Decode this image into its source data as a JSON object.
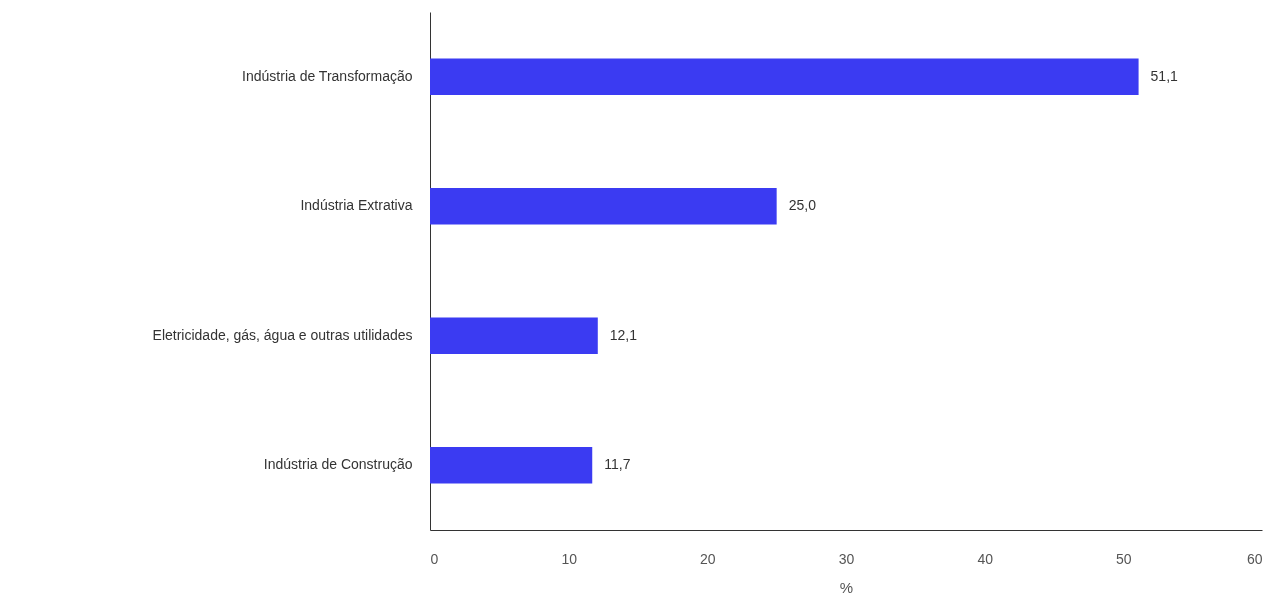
{
  "chart_data": {
    "type": "bar",
    "orientation": "horizontal",
    "xlabel": "%",
    "categories": [
      "Indústria de Transformação",
      "Indústria Extrativa",
      "Eletricidade, gás, água e outras utilidades",
      "Indústria de Construção"
    ],
    "values": [
      51.1,
      25.0,
      12.1,
      11.7
    ],
    "value_labels": [
      "51,1",
      "25,0",
      "12,1",
      "11,7"
    ],
    "color": "#3b3bf2",
    "xlim": [
      0,
      60
    ],
    "xticks": [
      0,
      10,
      20,
      30,
      40,
      50,
      60
    ]
  }
}
